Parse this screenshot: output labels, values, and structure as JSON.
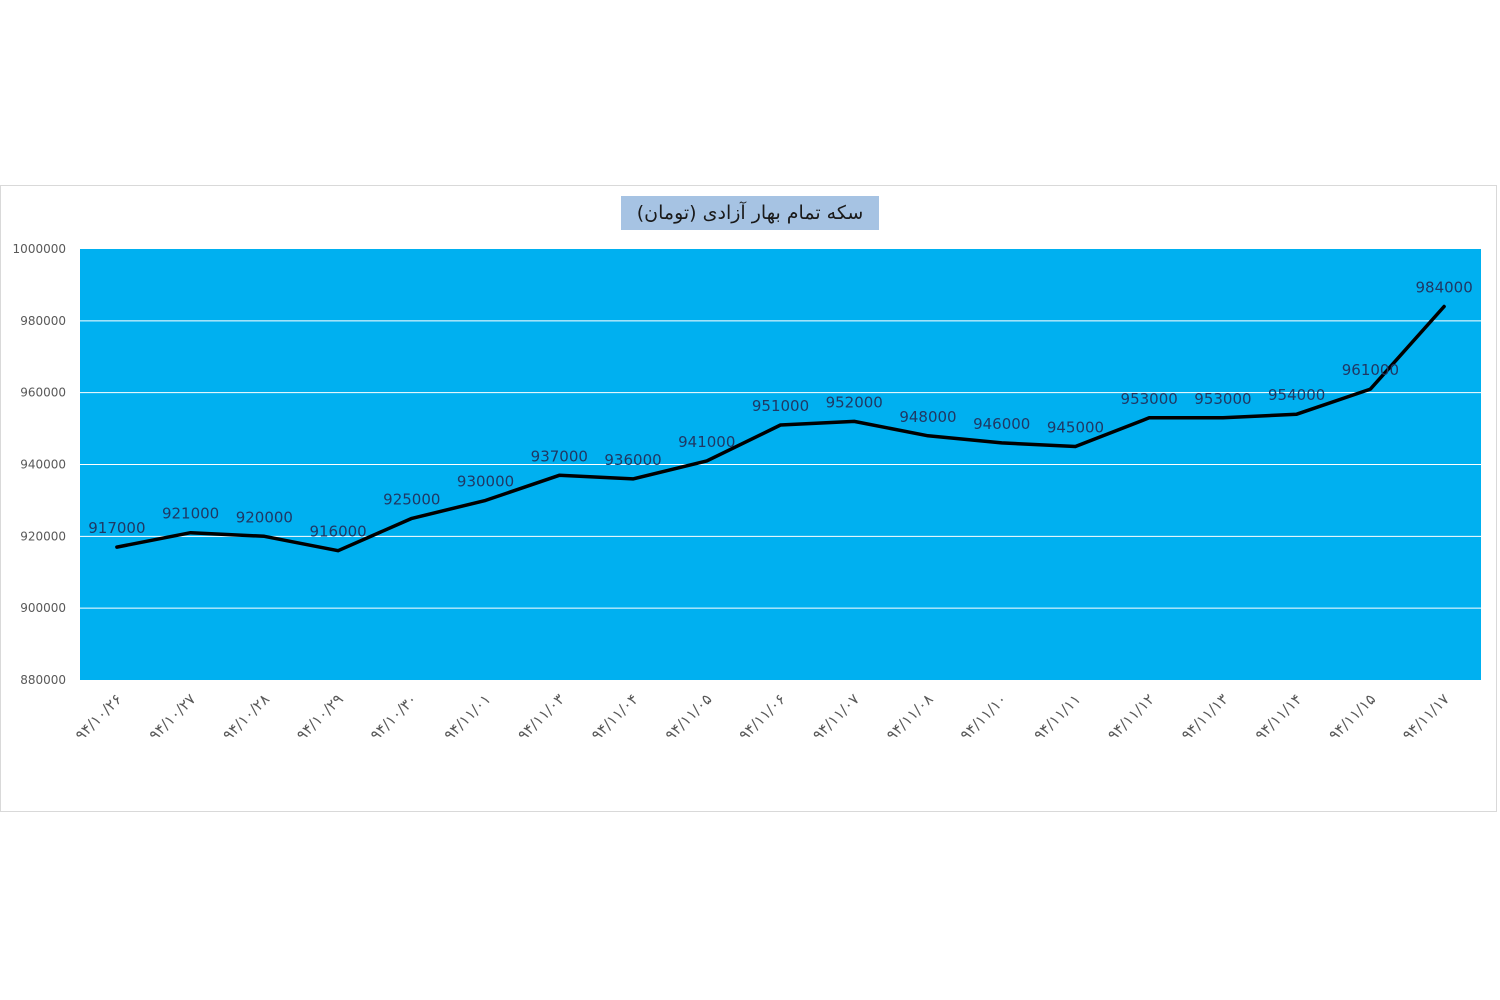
{
  "chart_data": {
    "type": "line",
    "title": "سکه تمام بهار آزادی (تومان)",
    "categories": [
      "۹۴/۱۰/۲۶",
      "۹۴/۱۰/۲۷",
      "۹۴/۱۰/۲۸",
      "۹۴/۱۰/۲۹",
      "۹۴/۱۰/۳۰",
      "۹۴/۱۱/۰۱",
      "۹۴/۱۱/۰۳",
      "۹۴/۱۱/۰۴",
      "۹۴/۱۱/۰۵",
      "۹۴/۱۱/۰۶",
      "۹۴/۱۱/۰۷",
      "۹۴/۱۱/۰۸",
      "۹۴/۱۱/۱۰",
      "۹۴/۱۱/۱۱",
      "۹۴/۱۱/۱۲",
      "۹۴/۱۱/۱۳",
      "۹۴/۱۱/۱۴",
      "۹۴/۱۱/۱۵",
      "۹۴/۱۱/۱۷"
    ],
    "series": [
      {
        "values": [
          917000,
          921000,
          920000,
          916000,
          925000,
          930000,
          937000,
          936000,
          941000,
          951000,
          952000,
          948000,
          946000,
          945000,
          953000,
          953000,
          954000,
          961000,
          984000
        ],
        "color": "#000000"
      }
    ],
    "ylim": [
      880000,
      1000000
    ],
    "yticks": [
      880000,
      900000,
      920000,
      940000,
      960000,
      980000,
      1000000
    ],
    "grid": true,
    "legend": "none",
    "plot_background": "#00b0f0",
    "gridline_color": "#ffffff",
    "title_background": "#a6c3e3",
    "label_color": "#1f3864",
    "axis_text_color": "#595959"
  }
}
